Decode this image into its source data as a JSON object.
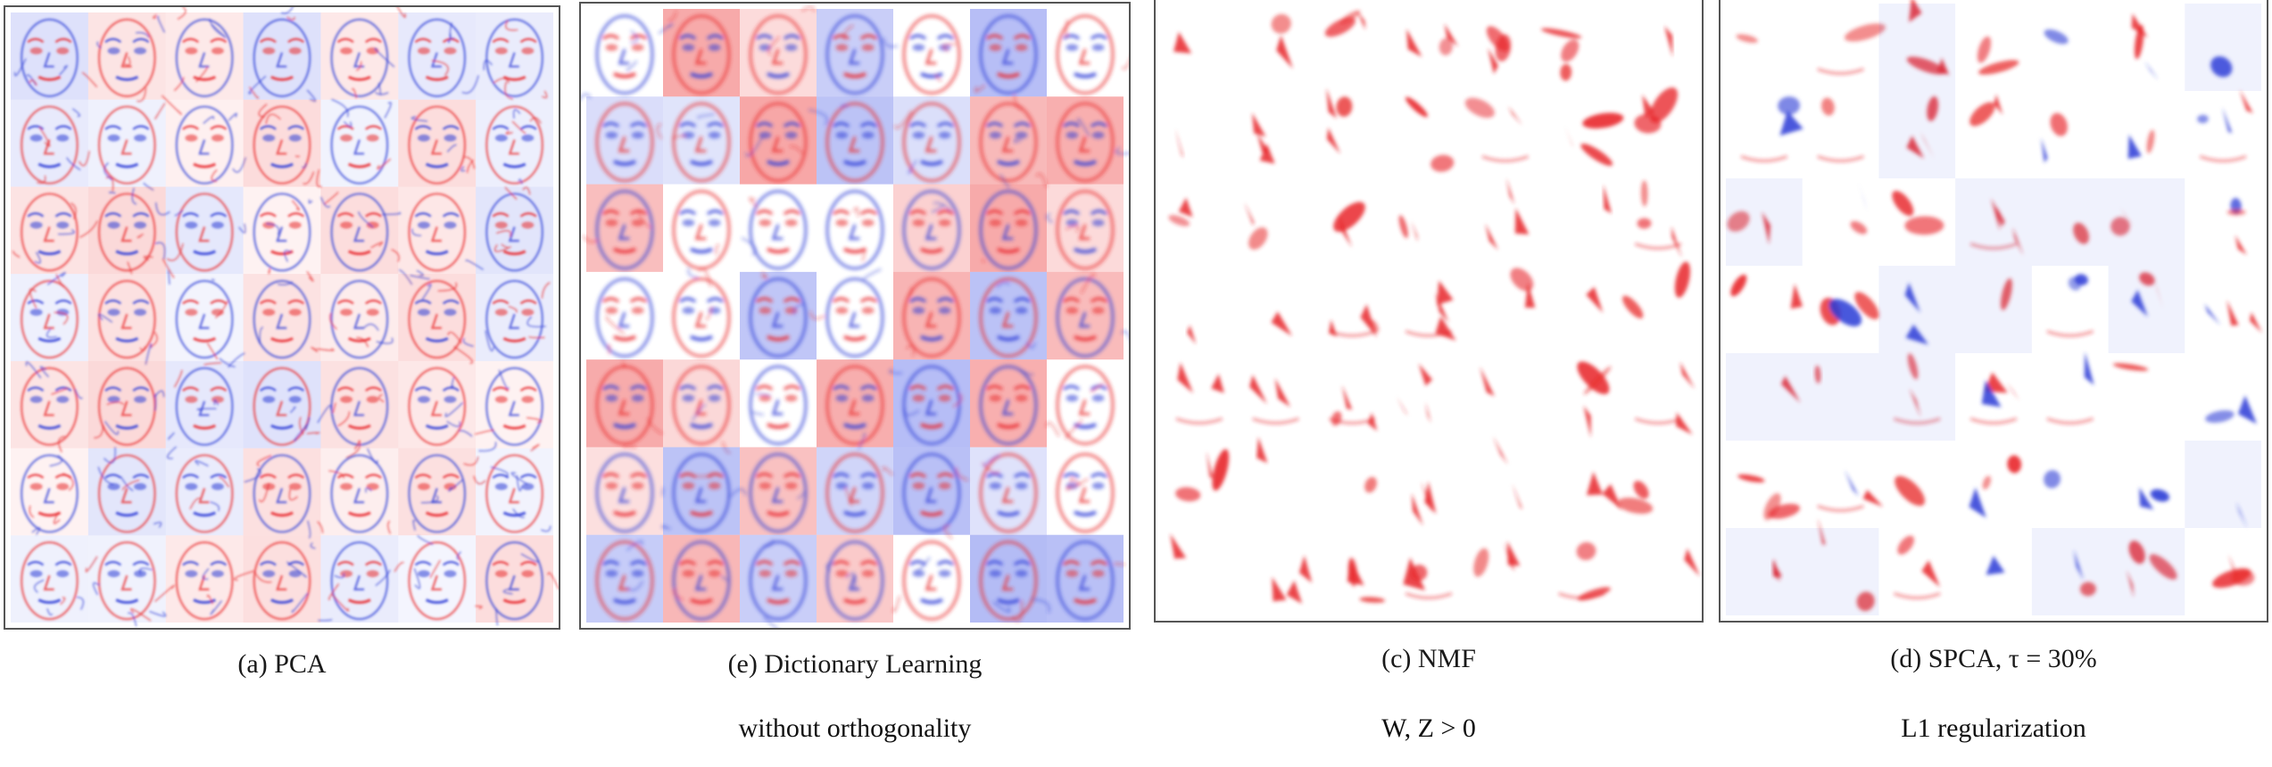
{
  "figure": {
    "panels": [
      {
        "id": "pca",
        "caption_prefix": "(a)",
        "caption_text": "PCA",
        "subtitle": "",
        "style": "dense",
        "rows": 7,
        "cols": 7,
        "colors": {
          "red": "#e8262a",
          "blue": "#2b3bd6",
          "bg": "#ffffff"
        }
      },
      {
        "id": "dictionary-learning",
        "caption_prefix": "(e)",
        "caption_text": "Dictionary Learning",
        "subtitle": "without orthogonality",
        "style": "blocky",
        "rows": 7,
        "cols": 7,
        "colors": {
          "red": "#e8262a",
          "blue": "#2b3bd6",
          "bg": "#ffffff"
        }
      },
      {
        "id": "nmf",
        "caption_prefix": "(c)",
        "caption_text": "NMF",
        "subtitle": "W, Z > 0",
        "style": "sparse-red",
        "rows": 7,
        "cols": 7,
        "colors": {
          "red": "#e8262a",
          "blue": "#2b3bd6",
          "bg": "#ffffff"
        }
      },
      {
        "id": "spca",
        "caption_prefix": "(d)",
        "caption_text": "SPCA, τ = 30%",
        "subtitle": "L1 regularization",
        "style": "sparse-mixed",
        "rows": 7,
        "cols": 7,
        "colors": {
          "red": "#e8262a",
          "blue": "#2b3bd6",
          "bg": "#ffffff"
        }
      }
    ]
  }
}
